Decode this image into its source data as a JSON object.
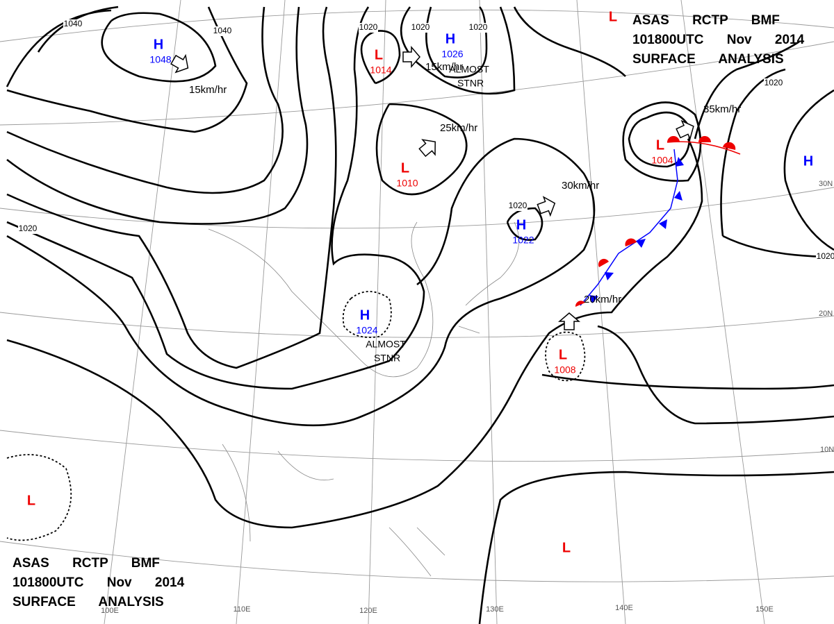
{
  "header": {
    "lines": [
      "ASAS RCTP BMF",
      "101800UTC Nov 2014",
      "SURFACE ANALYSIS"
    ]
  },
  "footer": {
    "lines": [
      "ASAS RCTP BMF",
      "101800UTC Nov 2014",
      "SURFACE ANALYSIS"
    ]
  },
  "systems": [
    {
      "type": "H",
      "pressure": 1048
    },
    {
      "type": "L",
      "pressure": 1014
    },
    {
      "type": "H",
      "pressure": 1026
    },
    {
      "type": "L",
      "pressure": 1010
    },
    {
      "type": "L",
      "pressure": 1004
    },
    {
      "type": "H",
      "pressure": 1022
    },
    {
      "type": "H",
      "pressure": 1024
    },
    {
      "type": "L",
      "pressure": 1008
    },
    {
      "type": "L"
    },
    {
      "type": "L"
    },
    {
      "type": "H"
    },
    {
      "type": "L"
    }
  ],
  "motions": [
    "15km/hr",
    "15km/hr",
    "25km/hr",
    "30km/hr",
    "35km/hr",
    "20km/hr"
  ],
  "notes": [
    {
      "lines": [
        "ALMOST",
        "STNR"
      ]
    },
    {
      "lines": [
        "ALMOST",
        "STNR"
      ]
    }
  ],
  "isobar_labels": [
    1040,
    1040,
    1020,
    1020,
    1020,
    1020,
    1020,
    1020,
    1020
  ],
  "lat_labels": [
    "30N",
    "20N",
    "10N"
  ],
  "lon_labels": [
    "100E",
    "110E",
    "120E",
    "130E",
    "140E",
    "150E"
  ]
}
